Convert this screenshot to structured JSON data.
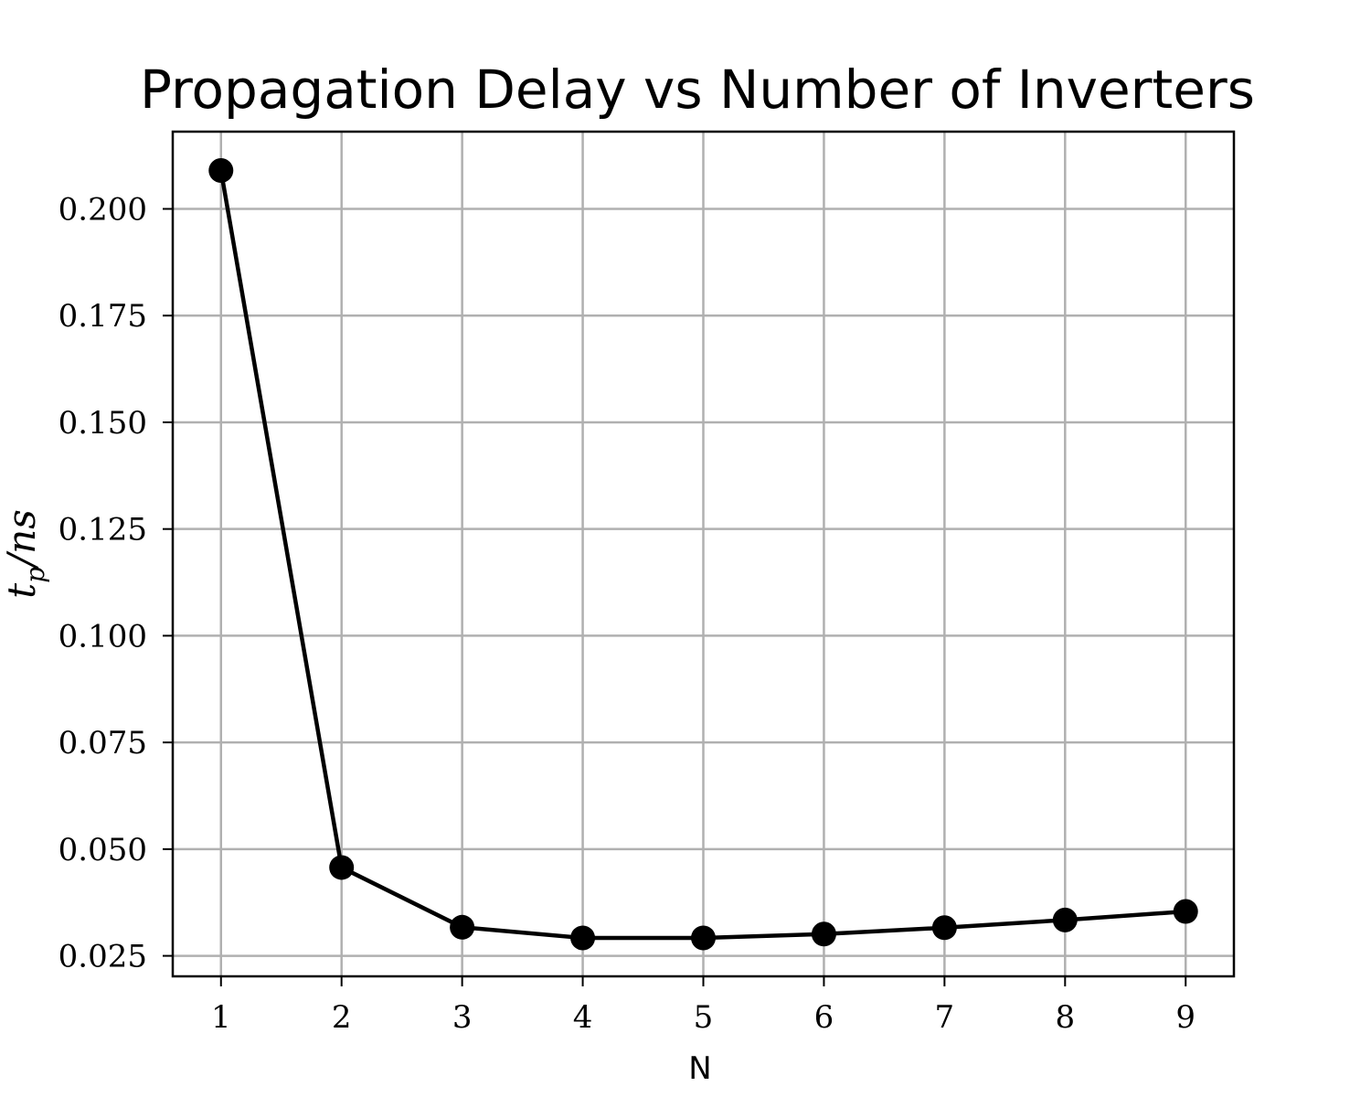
{
  "chart_data": {
    "type": "line",
    "title": "Propagation Delay vs Number of Inverters",
    "xlabel": "N",
    "ylabel": {
      "base": "t",
      "subscript": "p",
      "rest": "/ns"
    },
    "x": [
      1,
      2,
      3,
      4,
      5,
      6,
      7,
      8,
      9
    ],
    "series": [
      {
        "values": [
          0.209,
          0.0457,
          0.0317,
          0.0292,
          0.0292,
          0.0301,
          0.0316,
          0.0334,
          0.0354
        ]
      }
    ],
    "xlim": [
      0.6,
      9.4
    ],
    "ylim": [
      0.0202,
      0.2181
    ],
    "xticks": [
      1,
      2,
      3,
      4,
      5,
      6,
      7,
      8,
      9
    ],
    "yticks": [
      0.025,
      0.05,
      0.075,
      0.1,
      0.125,
      0.15,
      0.175,
      0.2
    ],
    "ytick_labels": [
      "0.025",
      "0.050",
      "0.075",
      "0.100",
      "0.125",
      "0.150",
      "0.175",
      "0.200"
    ],
    "xtick_labels": [
      "1",
      "2",
      "3",
      "4",
      "5",
      "6",
      "7",
      "8",
      "9"
    ],
    "grid": true,
    "line_color": "#000000",
    "grid_color": "#b0b0b0"
  }
}
